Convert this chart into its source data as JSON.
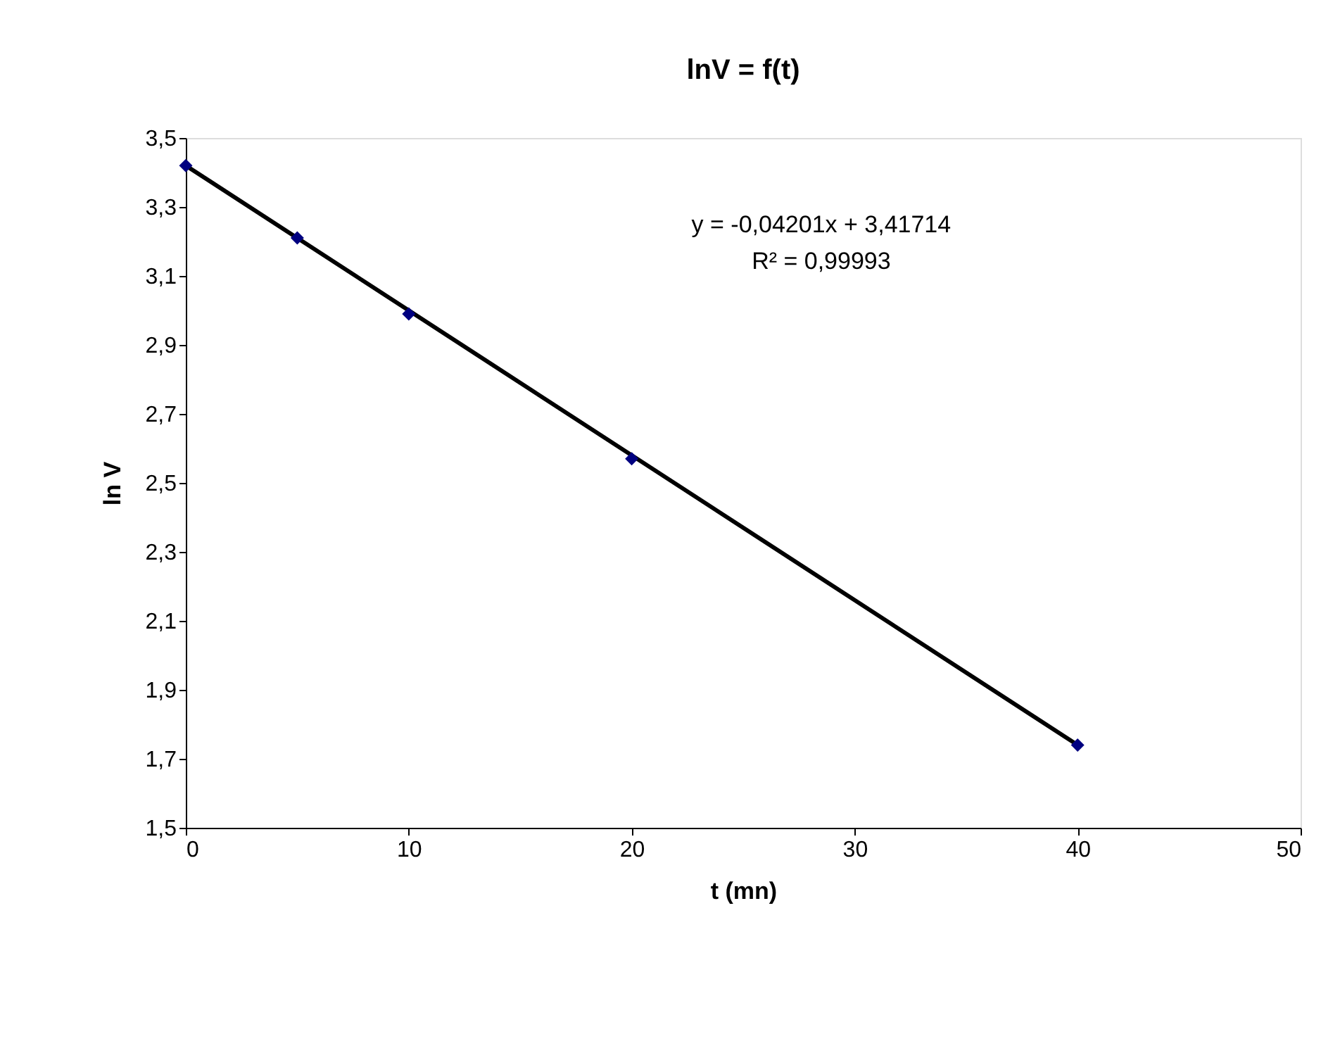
{
  "chart_data": {
    "type": "scatter",
    "title": "lnV = f(t)",
    "xlabel": "t (mn)",
    "ylabel": "ln V",
    "series": [
      {
        "color": "#000080",
        "marker": "diamond",
        "x": [
          0,
          5,
          10,
          20,
          40
        ],
        "values": [
          3.42,
          3.21,
          2.99,
          2.57,
          1.74
        ]
      },
      {
        "type": "line",
        "color": "#000000",
        "marker": "none",
        "line_style": "solid",
        "x": [
          0,
          40
        ],
        "values": [
          3.42,
          1.74
        ]
      }
    ],
    "xlim": [
      0,
      50
    ],
    "xticks": [
      0,
      10,
      20,
      30,
      40,
      50
    ],
    "ylim": [
      1.5,
      3.5
    ],
    "yticks": [
      {
        "value": 1.5,
        "label": "1,5"
      },
      {
        "value": 1.7,
        "label": "1,7"
      },
      {
        "value": 1.9,
        "label": "1,9"
      },
      {
        "value": 2.1,
        "label": "2,1"
      },
      {
        "value": 2.3,
        "label": "2,3"
      },
      {
        "value": 2.5,
        "label": "2,5"
      },
      {
        "value": 2.7,
        "label": "2,7"
      },
      {
        "value": 2.9,
        "label": "2,9"
      },
      {
        "value": 3.1,
        "label": "3,1"
      },
      {
        "value": 3.3,
        "label": "3,3"
      },
      {
        "value": 3.5,
        "label": "3,5"
      }
    ],
    "annotations": [
      "y = -0,04201x + 3,41714",
      "R² = 0,99993"
    ],
    "grid": false
  }
}
